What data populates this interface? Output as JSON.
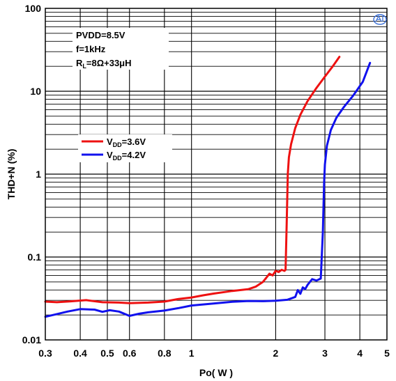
{
  "chart_data": {
    "type": "line",
    "xlabel": "Po( W )",
    "ylabel": "THD+N (%)",
    "xscale": "log",
    "yscale": "log",
    "xlim": [
      0.3,
      5
    ],
    "ylim": [
      0.01,
      100
    ],
    "xticks": [
      {
        "v": 0.3,
        "label": "0.3"
      },
      {
        "v": 0.4,
        "label": "0.4"
      },
      {
        "v": 0.5,
        "label": "0.5"
      },
      {
        "v": 0.6,
        "label": "0.6"
      },
      {
        "v": 0.8,
        "label": "0.8"
      },
      {
        "v": 1,
        "label": "1"
      },
      {
        "v": 2,
        "label": "2"
      },
      {
        "v": 3,
        "label": "3"
      },
      {
        "v": 4,
        "label": "4"
      },
      {
        "v": 5,
        "label": "5"
      }
    ],
    "yticks": [
      {
        "v": 0.01,
        "label": "0.01"
      },
      {
        "v": 0.1,
        "label": "0.1"
      },
      {
        "v": 1,
        "label": "1"
      },
      {
        "v": 10,
        "label": "10"
      },
      {
        "v": 100,
        "label": "100"
      }
    ],
    "grid": true,
    "conditions": {
      "line1": "PVDD=8.5V",
      "line2": "f=1kHz",
      "line3_main": "R",
      "line3_sub": "L",
      "line3_rest": "=8Ω+33μH"
    },
    "legend_position": "upper-left",
    "series": [
      {
        "legend_main": "V",
        "legend_sub": "DD",
        "legend_rest": "=3.6V",
        "color": "#ee1111",
        "x": [
          0.3,
          0.33,
          0.37,
          0.42,
          0.48,
          0.55,
          0.6,
          0.7,
          0.8,
          0.9,
          1.0,
          1.1,
          1.2,
          1.4,
          1.6,
          1.7,
          1.75,
          1.8,
          1.85,
          1.9,
          1.95,
          2.0,
          2.05,
          2.1,
          2.15,
          2.17,
          2.19,
          2.21,
          2.23,
          2.27,
          2.35,
          2.45,
          2.6,
          2.8,
          3.0,
          3.2,
          3.38
        ],
        "y": [
          0.029,
          0.0285,
          0.0292,
          0.0302,
          0.0285,
          0.0282,
          0.0278,
          0.0282,
          0.029,
          0.0312,
          0.0325,
          0.0345,
          0.0362,
          0.039,
          0.041,
          0.044,
          0.047,
          0.05,
          0.056,
          0.063,
          0.06,
          0.068,
          0.066,
          0.07,
          0.068,
          0.07,
          0.25,
          1.0,
          1.6,
          2.3,
          3.6,
          5.2,
          7.6,
          11.0,
          15.0,
          20.0,
          26.0
        ]
      },
      {
        "legend_main": "V",
        "legend_sub": "DD",
        "legend_rest": "=4.2V",
        "color": "#1111ee",
        "x": [
          0.3,
          0.33,
          0.36,
          0.4,
          0.45,
          0.48,
          0.51,
          0.55,
          0.6,
          0.65,
          0.7,
          0.8,
          0.9,
          1.0,
          1.2,
          1.4,
          1.6,
          1.8,
          2.0,
          2.2,
          2.35,
          2.4,
          2.45,
          2.5,
          2.55,
          2.6,
          2.7,
          2.8,
          2.9,
          2.95,
          2.98,
          3.0,
          3.05,
          3.15,
          3.3,
          3.5,
          3.8,
          4.1,
          4.35
        ],
        "y": [
          0.019,
          0.0205,
          0.022,
          0.0235,
          0.0232,
          0.0218,
          0.0228,
          0.022,
          0.0195,
          0.0207,
          0.0215,
          0.0226,
          0.0242,
          0.026,
          0.0275,
          0.0288,
          0.0295,
          0.0293,
          0.0297,
          0.0305,
          0.033,
          0.04,
          0.036,
          0.043,
          0.041,
          0.046,
          0.054,
          0.052,
          0.055,
          0.2,
          0.8,
          1.3,
          2.2,
          3.4,
          4.8,
          6.4,
          9.0,
          13.0,
          22.0
        ]
      }
    ]
  }
}
